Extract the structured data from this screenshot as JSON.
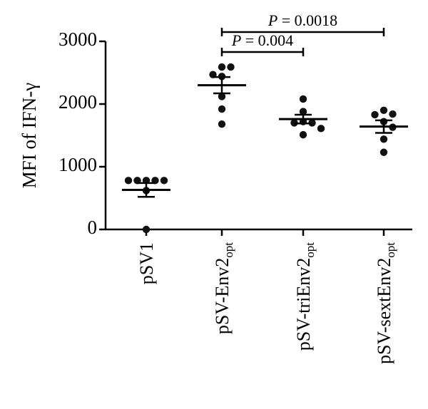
{
  "chart_data": {
    "type": "scatter",
    "ylabel": "MFI of IFN-γ",
    "ylim": [
      0,
      3000
    ],
    "yticks": [
      "0",
      "1000",
      "2000",
      "3000"
    ],
    "grid": false,
    "categories": [
      {
        "main": "pSV1",
        "sub": ""
      },
      {
        "main": "pSV-Env2",
        "sub": "opt"
      },
      {
        "main": "pSV-triEnv2",
        "sub": "opt"
      },
      {
        "main": "pSV-sextEnv2",
        "sub": "opt"
      }
    ],
    "groups": [
      {
        "points": [
          780,
          780,
          780,
          780,
          780,
          620,
          0
        ],
        "mean": 630,
        "sem": 110
      },
      {
        "points": [
          2590,
          2590,
          2470,
          2440,
          2120,
          1920,
          1680
        ],
        "mean": 2300,
        "sem": 130
      },
      {
        "points": [
          2080,
          1880,
          1720,
          1700,
          1700,
          1610,
          1510
        ],
        "mean": 1760,
        "sem": 70
      },
      {
        "points": [
          1900,
          1840,
          1830,
          1720,
          1630,
          1440,
          1230
        ],
        "mean": 1640,
        "sem": 100
      }
    ],
    "annotations": [
      {
        "from": 1,
        "to": 3,
        "p_symbol": "P",
        "text": " = 0.0018"
      },
      {
        "from": 1,
        "to": 2,
        "p_symbol": "P",
        "text": " = 0.004"
      }
    ]
  }
}
